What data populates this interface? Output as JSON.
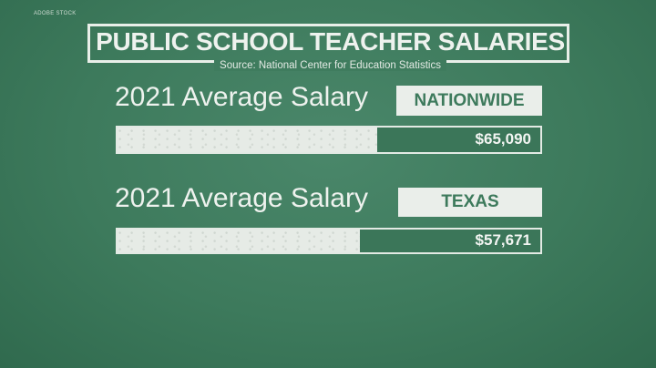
{
  "credit": "ADOBE STOCK",
  "title": "PUBLIC SCHOOL TEACHER SALARIES",
  "source": "Source: National Center for Education Statistics",
  "colors": {
    "background": "#3d7a5c",
    "chalk": "#eaeeea"
  },
  "chart_data": {
    "type": "bar",
    "orientation": "horizontal",
    "title": "PUBLIC SCHOOL TEACHER SALARIES",
    "categories": [
      "NATIONWIDE",
      "TEXAS"
    ],
    "values": [
      65090,
      57671
    ],
    "series": [
      {
        "heading": "2021 Average Salary",
        "tag": "NATIONWIDE",
        "value": 65090,
        "label": "$65,090",
        "fill_fraction": 0.615
      },
      {
        "heading": "2021 Average Salary",
        "tag": "TEXAS",
        "value": 57671,
        "label": "$57,671",
        "fill_fraction": 0.573
      }
    ]
  }
}
